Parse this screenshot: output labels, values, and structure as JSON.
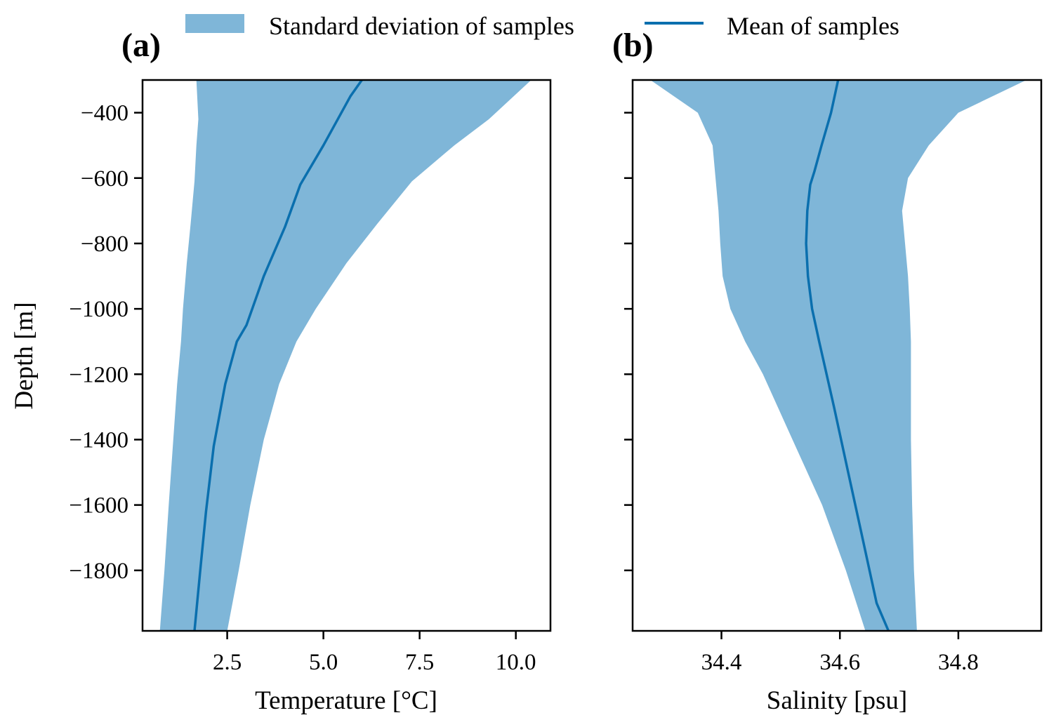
{
  "legend": {
    "band_label": "Standard deviation of samples",
    "line_label": "Mean of samples",
    "placement": "top-center"
  },
  "colors": {
    "band": "#7fb6d8",
    "line": "#0a6fae",
    "axes": "#000000"
  },
  "chart_data": [
    {
      "type": "line",
      "panel_label": "(a)",
      "title": "",
      "xlabel": "Temperature [°C]",
      "ylabel": "Depth [m]",
      "xlim": [
        0.3,
        10.9
      ],
      "ylim": [
        -1985,
        -300
      ],
      "xticks": [
        2.5,
        5.0,
        7.5,
        10.0
      ],
      "xtick_labels": [
        "2.5",
        "5.0",
        "7.5",
        "10.0"
      ],
      "yticks": [
        -400,
        -600,
        -800,
        -1000,
        -1200,
        -1400,
        -1600,
        -1800
      ],
      "ytick_labels": [
        "−400",
        "−600",
        "−800",
        "−1000",
        "−1200",
        "−1400",
        "−1600",
        "−1800"
      ],
      "show_ytick_labels": true,
      "grid": false,
      "series": [
        {
          "name": "Mean of samples",
          "depth": [
            -300,
            -350,
            -500,
            -620,
            -750,
            -900,
            -1050,
            -1100,
            -1230,
            -1420,
            -1620,
            -1800,
            -1985
          ],
          "values": [
            6.0,
            5.7,
            5.0,
            4.4,
            4.0,
            3.45,
            3.0,
            2.75,
            2.45,
            2.15,
            1.95,
            1.8,
            1.65
          ]
        },
        {
          "name": "Standard deviation of samples",
          "depth": [
            -300,
            -420,
            -500,
            -610,
            -740,
            -860,
            -1000,
            -1100,
            -1230,
            -1400,
            -1600,
            -1800,
            -1985
          ],
          "lower": [
            1.7,
            1.75,
            1.7,
            1.65,
            1.55,
            1.45,
            1.35,
            1.3,
            1.2,
            1.1,
            0.98,
            0.87,
            0.75
          ],
          "upper": [
            10.4,
            9.3,
            8.4,
            7.3,
            6.4,
            5.6,
            4.8,
            4.3,
            3.85,
            3.45,
            3.1,
            2.8,
            2.5
          ]
        }
      ]
    },
    {
      "type": "line",
      "panel_label": "(b)",
      "title": "",
      "xlabel": "Salinity [psu]",
      "ylabel": "",
      "xlim": [
        34.25,
        34.94
      ],
      "ylim": [
        -1985,
        -300
      ],
      "xticks": [
        34.4,
        34.6,
        34.8
      ],
      "xtick_labels": [
        "34.4",
        "34.6",
        "34.8"
      ],
      "yticks": [
        -400,
        -600,
        -800,
        -1000,
        -1200,
        -1400,
        -1600,
        -1800
      ],
      "show_ytick_labels": false,
      "grid": false,
      "series": [
        {
          "name": "Mean of samples",
          "depth": [
            -300,
            -400,
            -500,
            -580,
            -620,
            -700,
            -800,
            -900,
            -1000,
            -1100,
            -1300,
            -1500,
            -1700,
            -1900,
            -1985
          ],
          "values": [
            34.597,
            34.585,
            34.569,
            34.557,
            34.55,
            34.545,
            34.543,
            34.546,
            34.553,
            34.565,
            34.59,
            34.614,
            34.638,
            34.662,
            34.682
          ]
        },
        {
          "name": "Standard deviation of samples",
          "depth": [
            -300,
            -400,
            -500,
            -600,
            -700,
            -800,
            -900,
            -1000,
            -1100,
            -1200,
            -1400,
            -1600,
            -1800,
            -1985
          ],
          "lower": [
            34.28,
            34.36,
            34.385,
            34.39,
            34.395,
            34.398,
            34.402,
            34.415,
            34.44,
            34.47,
            34.52,
            34.57,
            34.61,
            34.643
          ],
          "upper": [
            34.915,
            34.8,
            34.75,
            34.715,
            34.705,
            34.71,
            34.715,
            34.718,
            34.72,
            34.72,
            34.72,
            34.722,
            34.725,
            34.73
          ]
        }
      ]
    }
  ]
}
